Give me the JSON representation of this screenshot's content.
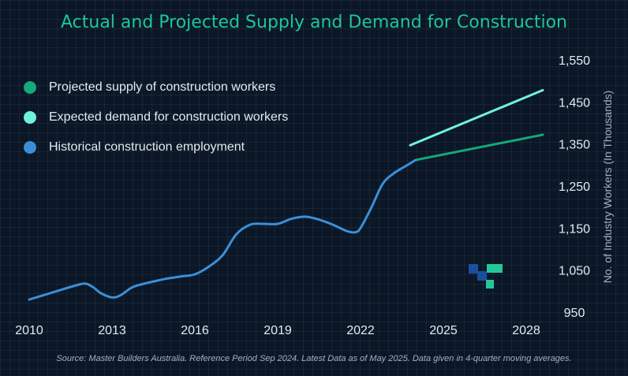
{
  "title": "Actual and Projected Supply and Demand for Construction",
  "legend": [
    {
      "label": "Projected supply of construction workers",
      "color": "#17a87b"
    },
    {
      "label": "Expected demand for construction workers",
      "color": "#6ff2dd"
    },
    {
      "label": "Historical construction employment",
      "color": "#3b8fd9"
    }
  ],
  "source": "Source: Master Builders Australia. Reference Period Sep 2024. Latest Data as of May 2025. Data given in 4-quarter moving averages.",
  "logo": {
    "name": "logo-mark",
    "colors": [
      "#1a4fa0",
      "#24c79b"
    ]
  },
  "chart_data": {
    "type": "line",
    "title": "Actual and Projected Supply and Demand for Construction",
    "xlabel": "",
    "ylabel": "No. of Industry Workers (In Thousands)",
    "xlim": [
      2010,
      2028.6
    ],
    "ylim": [
      950,
      1550
    ],
    "x_ticks": [
      2010,
      2013,
      2016,
      2019,
      2022,
      2025,
      2028
    ],
    "y_ticks": [
      950,
      1050,
      1150,
      1250,
      1350,
      1450,
      1550
    ],
    "y_tick_labels": [
      "950",
      "1,050",
      "1,150",
      "1,250",
      "1,350",
      "1,450",
      "1,550"
    ],
    "y_axis_side": "right",
    "grid": false,
    "legend_position": "top-left",
    "series": [
      {
        "name": "Historical construction employment",
        "color": "#3b8fd9",
        "x": [
          2010,
          2010.5,
          2011,
          2011.5,
          2012,
          2012.3,
          2012.6,
          2013,
          2013.3,
          2013.7,
          2014,
          2014.5,
          2015,
          2015.5,
          2016,
          2016.5,
          2017,
          2017.5,
          2018,
          2018.5,
          2019,
          2019.5,
          2020,
          2020.5,
          2021,
          2021.5,
          2021.8,
          2022,
          2022.4,
          2022.8,
          2023.2,
          2023.7,
          2024
        ],
        "y": [
          980,
          990,
          1000,
          1010,
          1018,
          1010,
          995,
          985,
          990,
          1008,
          1015,
          1023,
          1030,
          1035,
          1040,
          1058,
          1085,
          1135,
          1158,
          1160,
          1160,
          1172,
          1177,
          1170,
          1158,
          1143,
          1140,
          1150,
          1200,
          1255,
          1280,
          1300,
          1312
        ]
      },
      {
        "name": "Projected supply of construction workers",
        "color": "#17a87b",
        "x": [
          2024,
          2028.6
        ],
        "y": [
          1312,
          1372
        ]
      },
      {
        "name": "Expected demand for construction workers",
        "color": "#6ff2dd",
        "x": [
          2023.8,
          2028.6
        ],
        "y": [
          1347,
          1478
        ]
      }
    ]
  }
}
